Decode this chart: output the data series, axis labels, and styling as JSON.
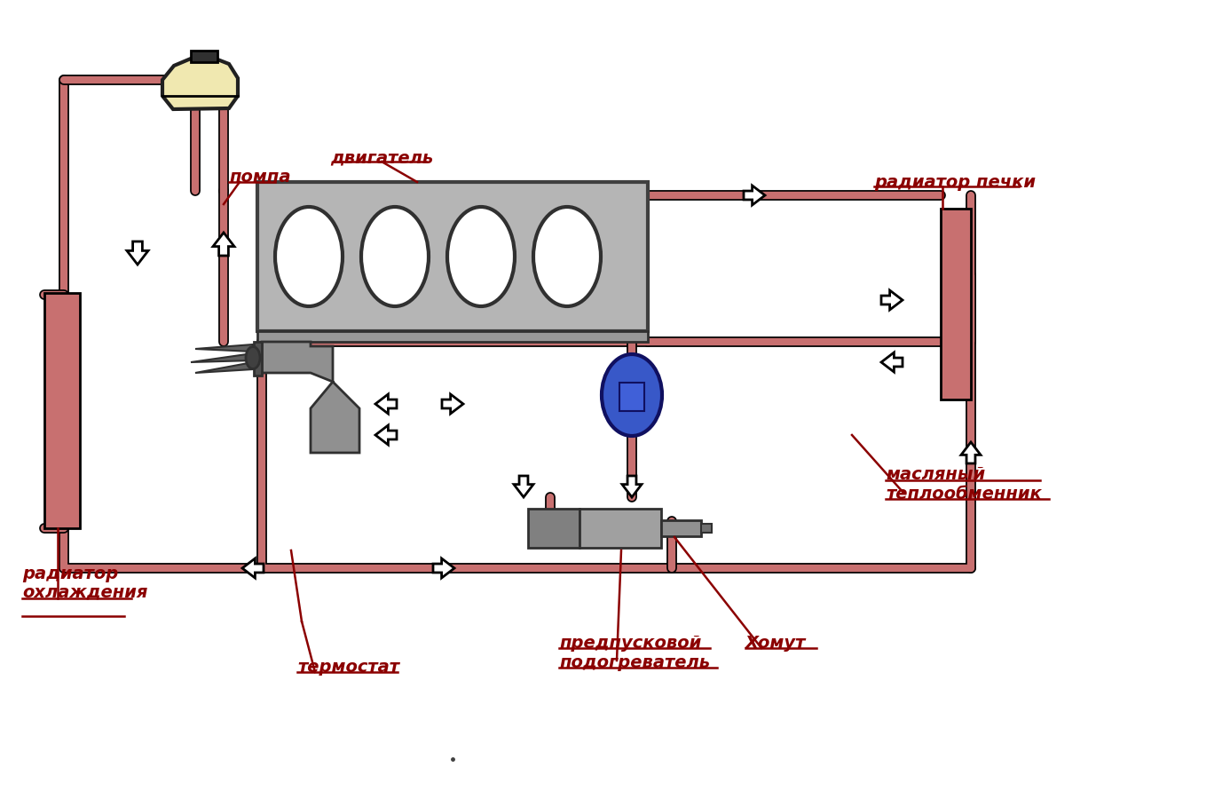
{
  "bg_color": "#ffffff",
  "pipe_color": "#c87070",
  "pipe_lw": 6,
  "engine_fill": "#b5b5b5",
  "engine_edge": "#404040",
  "rad_fill": "#c87070",
  "tank_fill": "#f0e8b0",
  "tank_edge": "#202020",
  "pump_fill": "#3858c8",
  "pump_edge": "#101060",
  "label_color": "#8b0000",
  "label_fontsize": 14,
  "pointer_color": "#8b0000",
  "labels": {
    "pompa": "помпа",
    "dvigatel": "двигатель",
    "radiator_pechki": "радиатор печки",
    "radiator_ohlazh_1": "радиатор",
    "radiator_ohlazh_2": "охлаждения",
    "termostat": "термостат",
    "predpusk_1": "предпусковой",
    "predpusk_2": "подогреватель",
    "khomut": "Хомут",
    "maslyany_1": "масляный",
    "maslyany_2": "теплообменник"
  }
}
